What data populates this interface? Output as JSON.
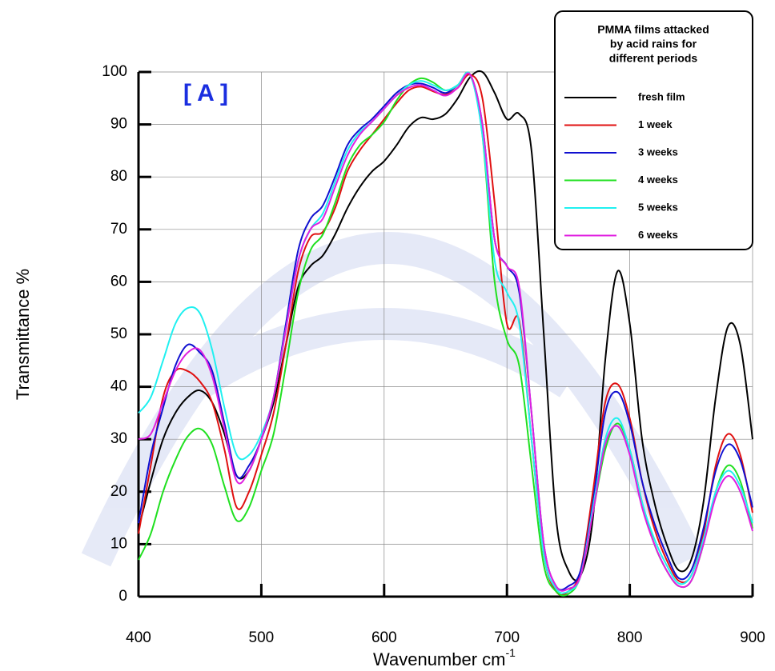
{
  "chart_data": {
    "type": "line",
    "annotation": "[ A ]",
    "xlabel": "Wavenumber  cm",
    "xlabel_superscript": "-1",
    "ylabel": "Transmittance  %",
    "legend_title": [
      "PMMA films attacked",
      "by acid rains for",
      "different periods"
    ],
    "legend_position": "upper right",
    "grid": true,
    "xlim": [
      400,
      900
    ],
    "xticks": [
      400,
      500,
      600,
      700,
      800,
      900
    ],
    "ylim": [
      0,
      100
    ],
    "yticks": [
      0,
      10,
      20,
      30,
      40,
      50,
      60,
      70,
      80,
      90,
      100
    ],
    "x": [
      400,
      410,
      420,
      430,
      440,
      450,
      460,
      470,
      480,
      490,
      500,
      510,
      520,
      530,
      540,
      550,
      560,
      570,
      580,
      590,
      600,
      610,
      620,
      630,
      640,
      650,
      660,
      670,
      680,
      690,
      700,
      710,
      720,
      730,
      740,
      750,
      760,
      770,
      780,
      790,
      800,
      810,
      820,
      830,
      840,
      850,
      860,
      870,
      880,
      890,
      900
    ],
    "series": [
      {
        "name": "fresh film",
        "color": "#000000",
        "values": [
          13,
          22,
          30,
          35,
          38,
          39.3,
          37,
          31,
          23,
          24,
          30,
          37,
          48,
          59,
          63,
          65,
          69,
          74,
          78,
          81,
          83,
          86,
          89.5,
          91.3,
          91,
          92,
          95,
          99,
          100,
          96,
          91,
          92,
          85,
          50,
          15,
          5,
          4,
          15,
          45,
          62,
          52,
          30,
          18,
          10,
          5,
          7,
          18,
          38,
          51.5,
          48,
          30
        ]
      },
      {
        "name": "1 week",
        "color": "#e01010",
        "values": [
          12,
          25,
          38,
          43,
          43,
          41,
          37,
          28,
          17,
          20,
          27,
          35,
          48,
          62,
          68.5,
          69.5,
          74,
          81,
          85,
          88,
          91,
          94,
          96.5,
          97.2,
          96.3,
          95.7,
          97,
          99.5,
          95,
          75,
          52,
          52.5,
          30,
          8,
          1,
          1,
          5,
          20,
          37,
          40.5,
          34,
          22,
          13,
          7,
          3,
          4,
          12,
          25,
          31,
          27,
          16
        ]
      },
      {
        "name": "3 weeks",
        "color": "#1010d0",
        "values": [
          14,
          27,
          36,
          44,
          48,
          46.5,
          43,
          33,
          23,
          25,
          30,
          38,
          52,
          66,
          72,
          74.5,
          80,
          86,
          89,
          91,
          93.5,
          96,
          97.5,
          97.8,
          97,
          96,
          97.5,
          99.5,
          90,
          68,
          63,
          58,
          35,
          10,
          2,
          2,
          5,
          18,
          35,
          39,
          33,
          22,
          14,
          8,
          3.5,
          5,
          13,
          24,
          29,
          26,
          17
        ]
      },
      {
        "name": "4 weeks",
        "color": "#20e020",
        "values": [
          7,
          12,
          20,
          26,
          30.5,
          32,
          29,
          21,
          14.5,
          17,
          24,
          31,
          44,
          58,
          66,
          69,
          75,
          82,
          86,
          88,
          90.5,
          94.5,
          97.5,
          98.8,
          98,
          96.5,
          97.5,
          99.5,
          88,
          60,
          49,
          44,
          25,
          6,
          1,
          0.5,
          4,
          16,
          28,
          33,
          28,
          18,
          10,
          5,
          2,
          3,
          10,
          20,
          25,
          22,
          13
        ]
      },
      {
        "name": "5 weeks",
        "color": "#20f0f0",
        "values": [
          35,
          38,
          45,
          52,
          55,
          54,
          47,
          36,
          27,
          27,
          31,
          38,
          51,
          64,
          70,
          73,
          79,
          85,
          88.5,
          90.5,
          93,
          95.5,
          97.5,
          98.3,
          97.5,
          96.5,
          97.5,
          99.5,
          88,
          64,
          58,
          52,
          30,
          8,
          1.5,
          1,
          4,
          17,
          30,
          34,
          28,
          18,
          11,
          6,
          2.5,
          4,
          11,
          20,
          24,
          21,
          14
        ]
      },
      {
        "name": "6 weeks",
        "color": "#e020e0",
        "values": [
          30,
          31,
          37,
          43,
          46.5,
          47,
          42,
          32,
          22,
          24,
          30,
          38,
          51,
          64,
          70,
          72,
          78,
          84,
          88,
          90.5,
          93,
          95.5,
          97,
          97.5,
          96.5,
          95.5,
          97,
          99.5,
          90,
          68,
          63,
          59,
          35,
          10,
          2,
          1.5,
          4,
          16,
          29,
          32.5,
          27,
          17,
          10,
          5,
          2,
          3,
          10,
          19,
          23,
          20,
          12.5
        ]
      }
    ]
  }
}
